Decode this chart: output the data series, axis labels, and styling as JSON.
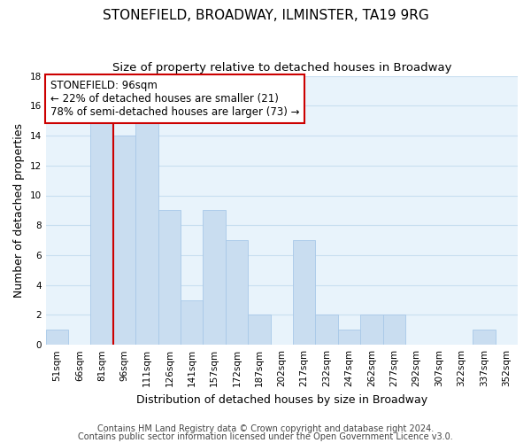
{
  "title": "STONEFIELD, BROADWAY, ILMINSTER, TA19 9RG",
  "subtitle": "Size of property relative to detached houses in Broadway",
  "xlabel": "Distribution of detached houses by size in Broadway",
  "ylabel": "Number of detached properties",
  "bin_labels": [
    "51sqm",
    "66sqm",
    "81sqm",
    "96sqm",
    "111sqm",
    "126sqm",
    "141sqm",
    "157sqm",
    "172sqm",
    "187sqm",
    "202sqm",
    "217sqm",
    "232sqm",
    "247sqm",
    "262sqm",
    "277sqm",
    "292sqm",
    "307sqm",
    "322sqm",
    "337sqm",
    "352sqm"
  ],
  "bar_heights": [
    1,
    0,
    15,
    14,
    15,
    9,
    3,
    9,
    7,
    2,
    0,
    7,
    2,
    1,
    2,
    2,
    0,
    0,
    0,
    1,
    0
  ],
  "bar_color": "#c9ddf0",
  "bar_edge_color": "#a8c8e8",
  "highlight_line_color": "#cc0000",
  "annotation_box_text": "STONEFIELD: 96sqm\n← 22% of detached houses are smaller (21)\n78% of semi-detached houses are larger (73) →",
  "annotation_box_color": "#ffffff",
  "annotation_box_edge_color": "#cc0000",
  "ylim": [
    0,
    18
  ],
  "yticks": [
    0,
    2,
    4,
    6,
    8,
    10,
    12,
    14,
    16,
    18
  ],
  "footer_line1": "Contains HM Land Registry data © Crown copyright and database right 2024.",
  "footer_line2": "Contains public sector information licensed under the Open Government Licence v3.0.",
  "background_color": "#ffffff",
  "plot_bg_color": "#e8f3fb",
  "grid_color": "#c8dff0",
  "title_fontsize": 11,
  "subtitle_fontsize": 9.5,
  "axis_label_fontsize": 9,
  "tick_fontsize": 7.5,
  "annotation_fontsize": 8.5,
  "footer_fontsize": 7
}
